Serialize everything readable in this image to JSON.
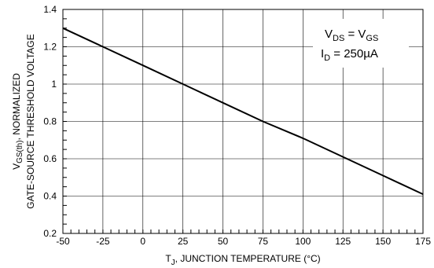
{
  "chart_data": {
    "type": "line",
    "xlabel": {
      "main": "T",
      "sub": "J",
      "rest": ", JUNCTION TEMPERATURE (°C)"
    },
    "ylabel": {
      "line1_main": "V",
      "line1_sub": "GS(th)",
      "line1_rest": ", NORMALIZED",
      "line2": "GATE-SOURCE THRESHOLD VOLTAGE"
    },
    "xlim": [
      -50,
      175
    ],
    "ylim": [
      0.2,
      1.4
    ],
    "x_ticks": [
      -50,
      -25,
      0,
      25,
      50,
      75,
      100,
      125,
      150,
      175
    ],
    "x_tick_labels": [
      "-50",
      "-25",
      "0",
      "25",
      "50",
      "75",
      "100",
      "125",
      "150",
      "175"
    ],
    "y_ticks": [
      0.2,
      0.4,
      0.6,
      0.8,
      1.0,
      1.2,
      1.4
    ],
    "y_tick_labels": [
      "0.2",
      "0.4",
      "0.6",
      "0.8",
      "1",
      "1.2",
      "1.4"
    ],
    "grid": true,
    "series": [
      {
        "x": [
          -50,
          -25,
          0,
          25,
          50,
          75,
          100,
          125,
          150,
          175
        ],
        "y": [
          1.3,
          1.2,
          1.1,
          1.0,
          0.9,
          0.8,
          0.71,
          0.61,
          0.51,
          0.41
        ]
      }
    ],
    "annotations": {
      "line1": {
        "a": "V",
        "a_sub": "DS",
        "mid": " = V",
        "b_sub": "GS"
      },
      "line2": {
        "a": "I",
        "a_sub": "D",
        "rest": " = 250µA"
      }
    }
  },
  "colors": {
    "line": "#000000",
    "grid": "#000000",
    "background": "#ffffff"
  }
}
